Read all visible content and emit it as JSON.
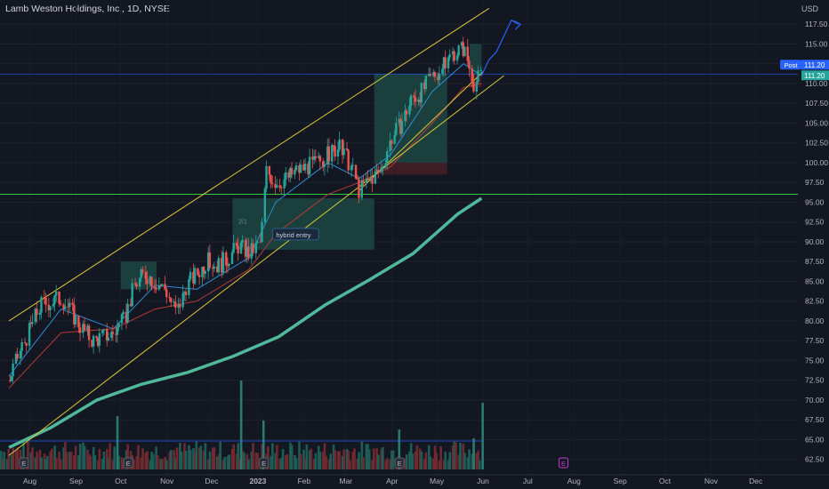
{
  "header": {
    "title": "Lamb Weston Holdings, Inc., 1D, NYSE",
    "currency": "USD"
  },
  "price_labels": {
    "post_tag": "Post",
    "post_price": "111.20",
    "last_price": "111.20"
  },
  "annotations": {
    "entry_label": "hybrid entry",
    "ratio_label": "2/1"
  },
  "earnings_marker": "E",
  "colors": {
    "background": "#131722",
    "up": "#26a69a",
    "down": "#ef5350",
    "channel": "#d8c83a",
    "horizontal": "#2ecc40",
    "ma_long": "#4fb99a",
    "ma_fast": "#2c8fd6",
    "ma_slow": "#b53a3a",
    "projection": "#2962ff",
    "target_zone": "#1d4a44",
    "stop_zone": "#4a2128"
  },
  "chart_data": {
    "type": "candlestick",
    "symbol": "Lamb Weston Holdings, Inc.",
    "interval": "1D",
    "exchange": "NYSE",
    "y_axis": {
      "ticks": [
        62.5,
        65,
        67.5,
        70,
        72.5,
        75,
        77.5,
        80,
        82.5,
        85,
        87.5,
        90,
        92.5,
        95,
        97.5,
        100,
        102.5,
        105,
        107.5,
        110,
        112.5,
        115,
        117.5
      ],
      "range": [
        61,
        120
      ],
      "side": "right",
      "unit": "USD"
    },
    "x_axis": {
      "labels": [
        "Aug",
        "Sep",
        "Oct",
        "Nov",
        "Dec",
        "2023",
        "Feb",
        "Mar",
        "Apr",
        "May",
        "Jun",
        "Jul",
        "Aug",
        "Sep",
        "Oct",
        "Nov",
        "Dec"
      ]
    },
    "price_path": [
      [
        "2022-07-18",
        72.5
      ],
      [
        "2022-07-25",
        76
      ],
      [
        "2022-08-01",
        79
      ],
      [
        "2022-08-08",
        82
      ],
      [
        "2022-08-15",
        82.5
      ],
      [
        "2022-08-22",
        83
      ],
      [
        "2022-08-29",
        81
      ],
      [
        "2022-09-05",
        79
      ],
      [
        "2022-09-12",
        77.5
      ],
      [
        "2022-09-19",
        78
      ],
      [
        "2022-09-26",
        78.5
      ],
      [
        "2022-10-03",
        80
      ],
      [
        "2022-10-10",
        84.5
      ],
      [
        "2022-10-17",
        86
      ],
      [
        "2022-10-24",
        85
      ],
      [
        "2022-10-31",
        84
      ],
      [
        "2022-11-07",
        81
      ],
      [
        "2022-11-14",
        84.5
      ],
      [
        "2022-11-21",
        86
      ],
      [
        "2022-11-28",
        87.5
      ],
      [
        "2022-12-05",
        87
      ],
      [
        "2022-12-12",
        88
      ],
      [
        "2022-12-19",
        89.5
      ],
      [
        "2022-12-26",
        88.5
      ],
      [
        "2023-01-03",
        90
      ],
      [
        "2023-01-06",
        99
      ],
      [
        "2023-01-13",
        97.5
      ],
      [
        "2023-01-20",
        98
      ],
      [
        "2023-01-27",
        99
      ],
      [
        "2023-02-03",
        99.5
      ],
      [
        "2023-02-10",
        100
      ],
      [
        "2023-02-17",
        101
      ],
      [
        "2023-02-24",
        102
      ],
      [
        "2023-03-03",
        100
      ],
      [
        "2023-03-10",
        96.5
      ],
      [
        "2023-03-17",
        98
      ],
      [
        "2023-03-24",
        99
      ],
      [
        "2023-03-31",
        103
      ],
      [
        "2023-04-07",
        105
      ],
      [
        "2023-04-14",
        108
      ],
      [
        "2023-04-21",
        109
      ],
      [
        "2023-04-28",
        111
      ],
      [
        "2023-05-05",
        112
      ],
      [
        "2023-05-12",
        114
      ],
      [
        "2023-05-19",
        114.5
      ],
      [
        "2023-05-23",
        112
      ],
      [
        "2023-05-26",
        110
      ],
      [
        "2023-05-31",
        111.2
      ]
    ],
    "moving_averages": [
      {
        "role": "fast",
        "values": [
          [
            "2022-07-18",
            73
          ],
          [
            "2022-08-22",
            81.5
          ],
          [
            "2022-09-26",
            79
          ],
          [
            "2022-10-24",
            84.5
          ],
          [
            "2022-11-21",
            84
          ],
          [
            "2022-12-26",
            88
          ],
          [
            "2023-01-13",
            95
          ],
          [
            "2023-02-17",
            100
          ],
          [
            "2023-03-10",
            98
          ],
          [
            "2023-03-31",
            101
          ],
          [
            "2023-04-28",
            109
          ],
          [
            "2023-05-19",
            112.5
          ],
          [
            "2023-05-31",
            111
          ]
        ]
      },
      {
        "role": "slow",
        "values": [
          [
            "2022-07-18",
            71.5
          ],
          [
            "2022-08-22",
            78.5
          ],
          [
            "2022-09-26",
            79
          ],
          [
            "2022-10-24",
            81.5
          ],
          [
            "2022-11-21",
            82.5
          ],
          [
            "2022-12-26",
            86.5
          ],
          [
            "2023-01-13",
            91
          ],
          [
            "2023-02-17",
            96
          ],
          [
            "2023-03-10",
            97.5
          ],
          [
            "2023-03-31",
            99.5
          ],
          [
            "2023-04-28",
            105
          ],
          [
            "2023-05-19",
            109.5
          ],
          [
            "2023-05-31",
            110
          ]
        ]
      },
      {
        "role": "long",
        "values": [
          [
            "2022-07-18",
            64
          ],
          [
            "2022-08-15",
            66.5
          ],
          [
            "2022-09-15",
            70
          ],
          [
            "2022-10-15",
            72
          ],
          [
            "2022-11-15",
            73.5
          ],
          [
            "2022-12-15",
            75.5
          ],
          [
            "2023-01-15",
            78
          ],
          [
            "2023-02-15",
            82
          ],
          [
            "2023-03-15",
            85
          ],
          [
            "2023-04-15",
            88.5
          ],
          [
            "2023-05-15",
            93.5
          ],
          [
            "2023-05-31",
            95.5
          ]
        ]
      }
    ],
    "channel_lines": [
      {
        "from": [
          "2022-07-18",
          80
        ],
        "to": [
          "2023-06-05",
          119.5
        ]
      },
      {
        "from": [
          "2022-07-18",
          63
        ],
        "to": [
          "2023-06-15",
          111
        ]
      },
      {
        "from": [
          "2023-03-10",
          96.5
        ],
        "to": [
          "2023-06-01",
          111.5
        ]
      }
    ],
    "horizontal_levels": [
      96,
      111.2
    ],
    "zones": [
      {
        "kind": "target",
        "from": "2022-12-15",
        "to": "2023-03-20",
        "low": 89,
        "high": 95.5
      },
      {
        "kind": "target",
        "from": "2022-10-01",
        "to": "2022-10-25",
        "low": 84,
        "high": 87.5
      },
      {
        "kind": "target",
        "from": "2023-03-20",
        "to": "2023-05-08",
        "low": 100,
        "high": 111.2
      },
      {
        "kind": "stop",
        "from": "2023-03-20",
        "to": "2023-05-08",
        "low": 98.5,
        "high": 100
      },
      {
        "kind": "target",
        "from": "2023-05-23",
        "to": "2023-05-31",
        "low": 111.2,
        "high": 115
      },
      {
        "kind": "stop",
        "from": "2023-05-23",
        "to": "2023-05-31",
        "low": 109.5,
        "high": 111.2
      }
    ],
    "projection_path": [
      [
        "2023-05-31",
        111
      ],
      [
        "2023-06-05",
        113
      ],
      [
        "2023-06-10",
        114
      ],
      [
        "2023-06-20",
        118
      ],
      [
        "2023-06-25",
        117.5
      ]
    ],
    "volume": {
      "ma_level": 0.32,
      "spikes": [
        [
          "2022-09-28",
          0.6
        ],
        [
          "2022-12-20",
          1.0
        ],
        [
          "2023-01-04",
          0.55
        ],
        [
          "2023-04-05",
          0.45
        ],
        [
          "2023-05-25",
          0.35
        ],
        [
          "2023-05-31",
          0.75
        ]
      ]
    },
    "earnings_dates": [
      "2022-07-28",
      "2022-10-06",
      "2023-01-05",
      "2023-04-06",
      "2023-07-25"
    ]
  }
}
